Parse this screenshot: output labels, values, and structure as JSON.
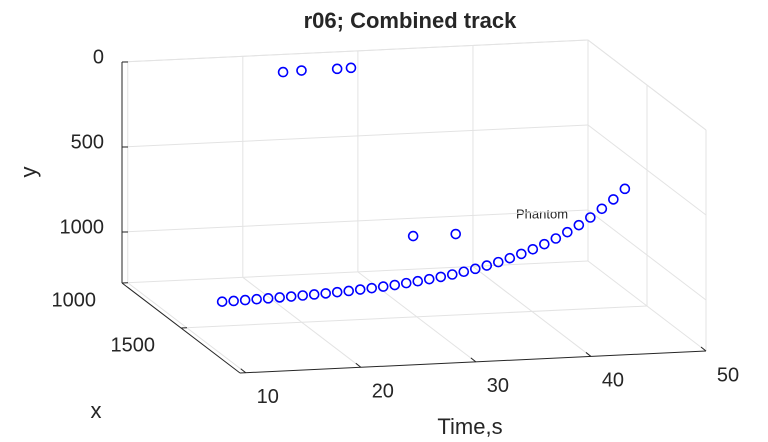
{
  "chart_data": {
    "type": "scatter3d",
    "title": "r06; Combined track",
    "time_label": "Time,s",
    "x_label": "x",
    "y_label": "y",
    "annotation": "Phantom",
    "tlim": [
      9.5,
      50
    ],
    "tticks": [
      10,
      20,
      30,
      40,
      50
    ],
    "xlim": [
      1000,
      2000
    ],
    "xticks": [
      1000,
      1500
    ],
    "ylim": [
      0,
      1300
    ],
    "yticks": [
      0,
      500,
      1000
    ],
    "y_reversed": true,
    "grid": true,
    "color": "#0000ff",
    "time": [
      10,
      11,
      12,
      13,
      14,
      15,
      16,
      17,
      18,
      19,
      20,
      21,
      22,
      23,
      24,
      25,
      26,
      27,
      28,
      29,
      30,
      31,
      32,
      33,
      34,
      35,
      36,
      37,
      38,
      39,
      40,
      41,
      42,
      43,
      44,
      45,
      23.5,
      25.1,
      28.2,
      29.4,
      26.6,
      30.3
    ],
    "x": [
      1800,
      1800,
      1800,
      1800,
      1800,
      1800,
      1800,
      1800,
      1800,
      1800,
      1800,
      1800,
      1800,
      1800,
      1800,
      1800,
      1800,
      1800,
      1800,
      1800,
      1800,
      1800,
      1800,
      1800,
      1800,
      1800,
      1800,
      1800,
      1800,
      1800,
      1800,
      1800,
      1800,
      1800,
      1800,
      1800,
      1000,
      1000,
      1000,
      1000,
      1800,
      1800
    ],
    "y": [
      988,
      987,
      985,
      983,
      981,
      979,
      977,
      974,
      971,
      968,
      964,
      960,
      955,
      950,
      944,
      938,
      930,
      922,
      913,
      903,
      892,
      879,
      865,
      849,
      832,
      812,
      790,
      766,
      739,
      709,
      675,
      637,
      595,
      547,
      495,
      436,
      104,
      100,
      100,
      98,
      655,
      655
    ]
  }
}
